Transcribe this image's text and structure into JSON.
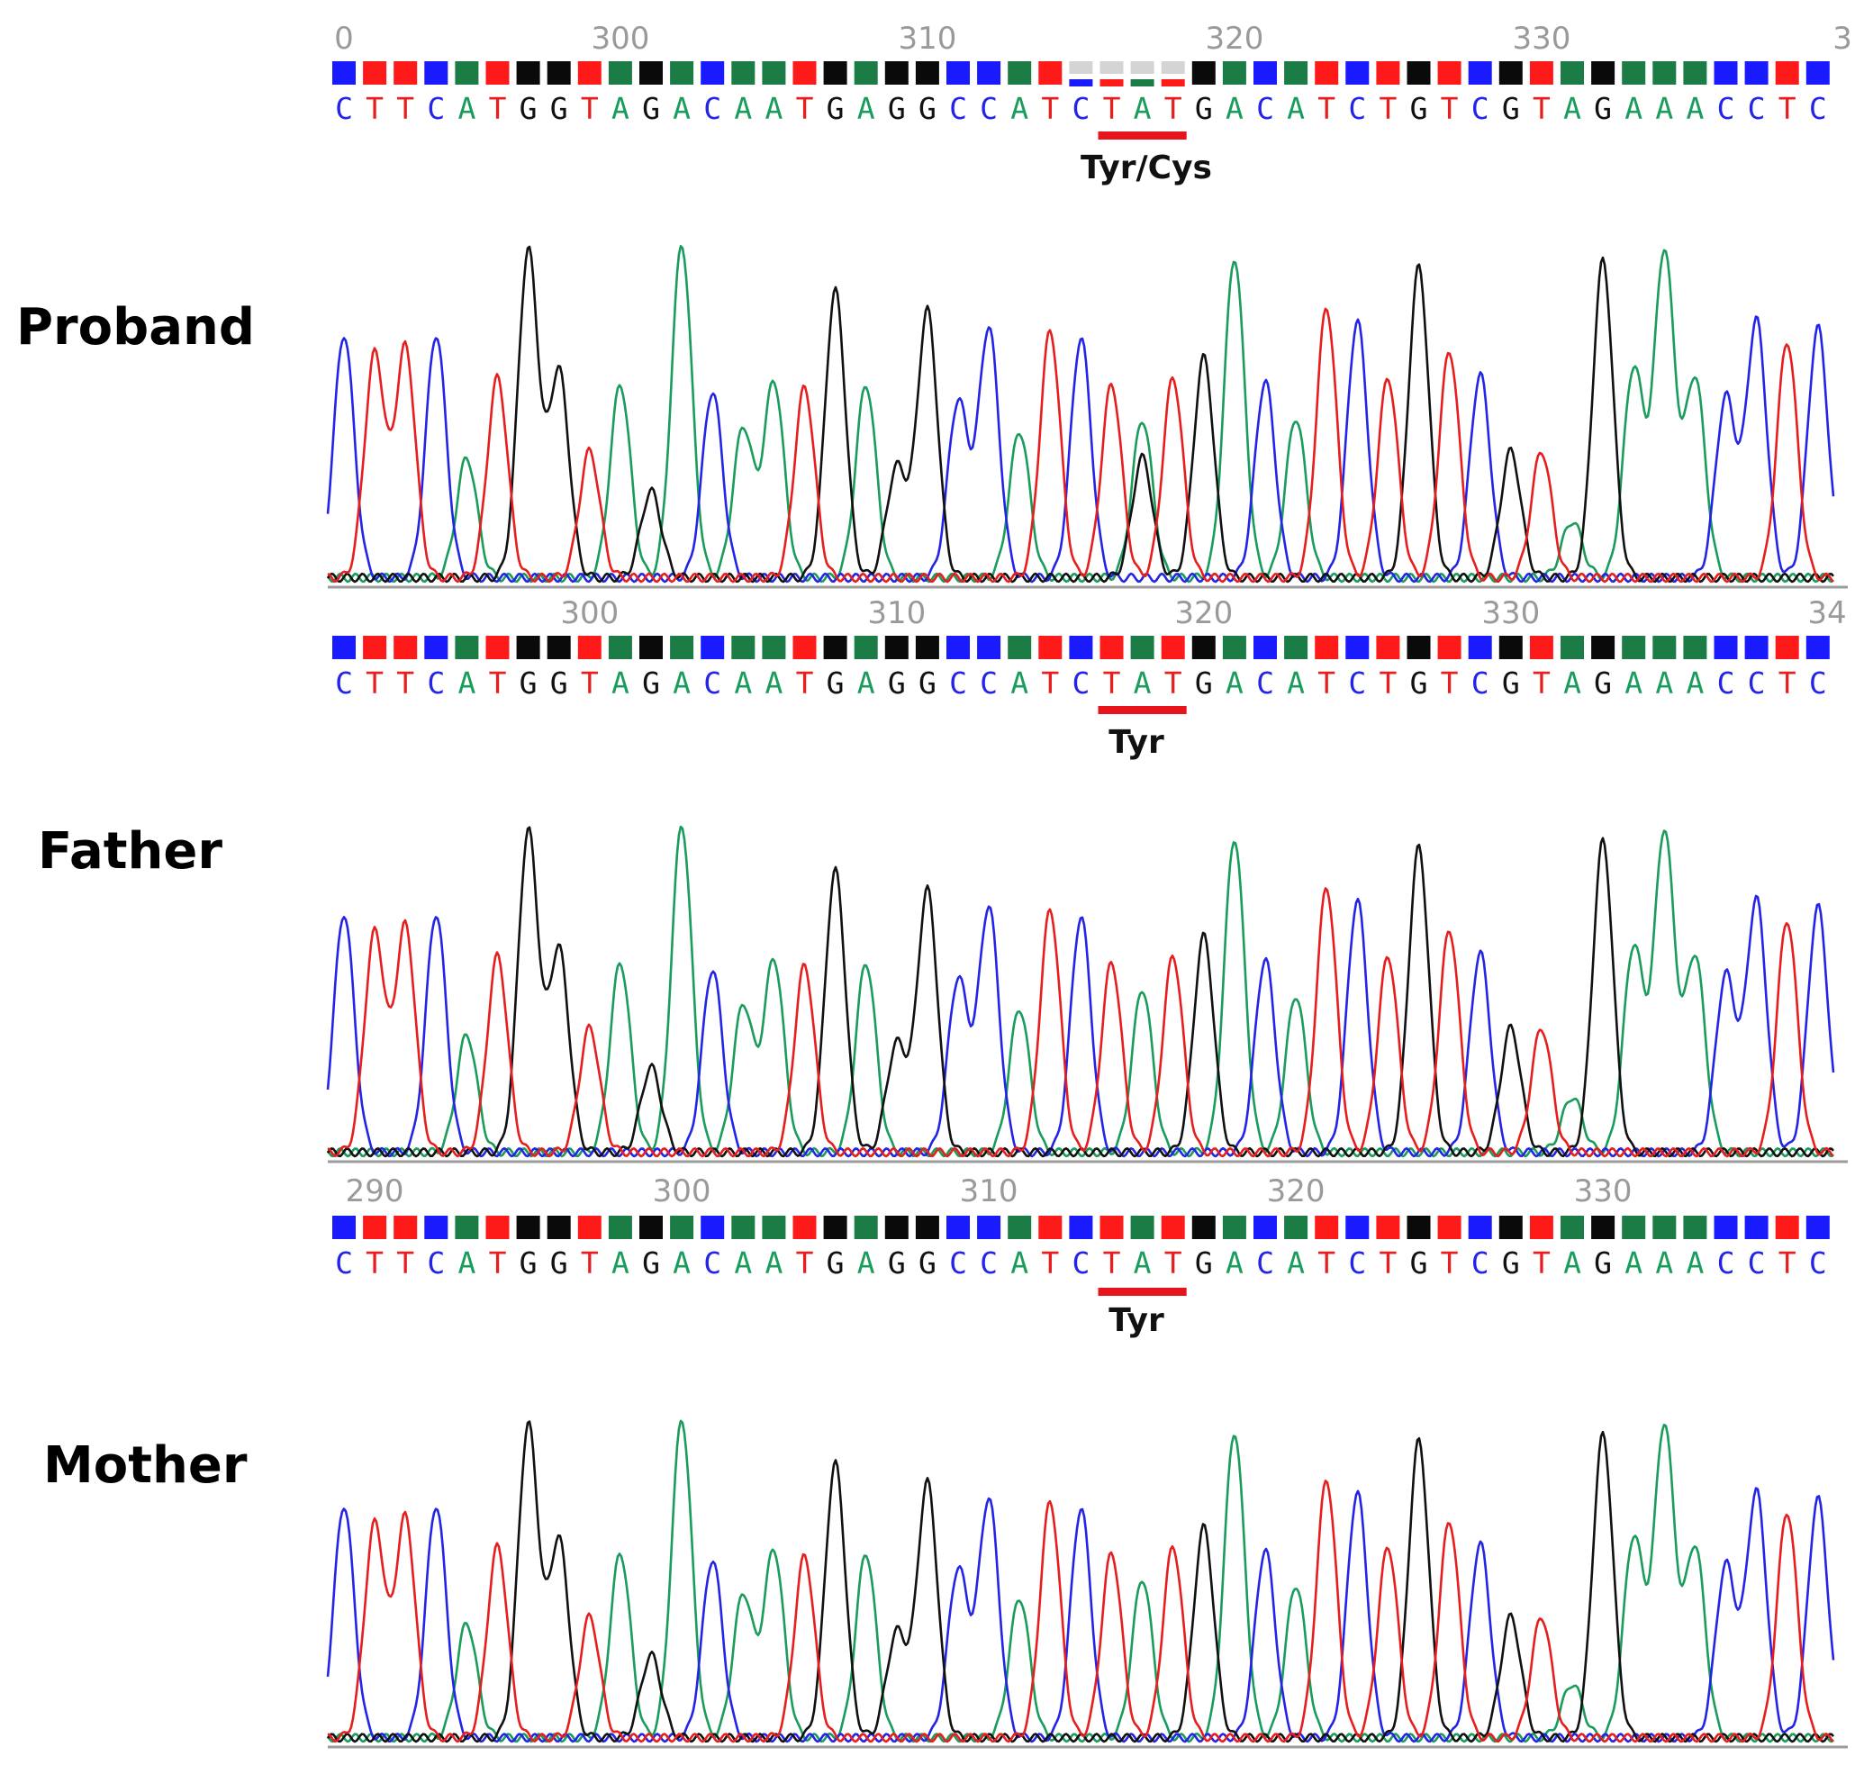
{
  "chart_data": [
    {
      "type": "chromatogram",
      "title": "",
      "panel_label": "Proband",
      "sequence": "CTTCATGGTAGACAATGAGGCCATCTATGACATCTGTCGTAGAAACCTC",
      "position_ticks": [
        {
          "text": "0",
          "seq_index": 0
        },
        {
          "text": "300",
          "seq_index": 9
        },
        {
          "text": "310",
          "seq_index": 19
        },
        {
          "text": "320",
          "seq_index": 29
        },
        {
          "text": "330",
          "seq_index": 39
        },
        {
          "text": "3",
          "seq_index": 48.8
        }
      ],
      "codon_start": 25,
      "codon_length": 3,
      "codon_label": "Tyr/Cys",
      "heterozygous_index": 26,
      "secondary_base": "G"
    },
    {
      "type": "chromatogram",
      "title": "",
      "panel_label": "Father",
      "sequence": "CTTCATGGTAGACAATGAGGCCATCTATGACATCTGTCGTAGAAACCTC",
      "position_ticks": [
        {
          "text": "300",
          "seq_index": 8
        },
        {
          "text": "310",
          "seq_index": 18
        },
        {
          "text": "320",
          "seq_index": 28
        },
        {
          "text": "330",
          "seq_index": 38
        },
        {
          "text": "34",
          "seq_index": 48.3
        }
      ],
      "codon_start": 25,
      "codon_length": 3,
      "codon_label": "Tyr"
    },
    {
      "type": "chromatogram",
      "title": "",
      "panel_label": "Mother",
      "sequence": "CTTCATGGTAGACAATGAGGCCATCTATGACATCTGTCGTAGAAACCTC",
      "position_ticks": [
        {
          "text": "290",
          "seq_index": 1
        },
        {
          "text": "300",
          "seq_index": 11
        },
        {
          "text": "310",
          "seq_index": 21
        },
        {
          "text": "320",
          "seq_index": 31
        },
        {
          "text": "330",
          "seq_index": 41
        }
      ],
      "codon_start": 25,
      "codon_length": 3,
      "codon_label": "Tyr"
    }
  ],
  "peak_heights": [
    0.73,
    0.67,
    0.69,
    0.73,
    0.36,
    0.6,
    0.98,
    0.62,
    0.38,
    0.58,
    0.26,
    1.0,
    0.56,
    0.45,
    0.59,
    0.57,
    0.86,
    0.58,
    0.33,
    0.8,
    0.53,
    0.75,
    0.44,
    0.74,
    0.72,
    0.58,
    0.5,
    0.6,
    0.66,
    0.96,
    0.59,
    0.48,
    0.81,
    0.77,
    0.6,
    0.93,
    0.68,
    0.61,
    0.38,
    0.38,
    0.17,
    0.95,
    0.63,
    0.98,
    0.6,
    0.54,
    0.77,
    0.71,
    0.75
  ],
  "colors": {
    "A": "#1a9c5c",
    "C": "#2424e6",
    "G": "#111111",
    "T": "#e61e1e",
    "bar_A": "#1b7c45",
    "bar_C": "#1a1aff",
    "bar_G": "#0a0a0a",
    "bar_T": "#ff1a1a",
    "underline": "#e8141b",
    "faded": "#d4d4d4"
  }
}
